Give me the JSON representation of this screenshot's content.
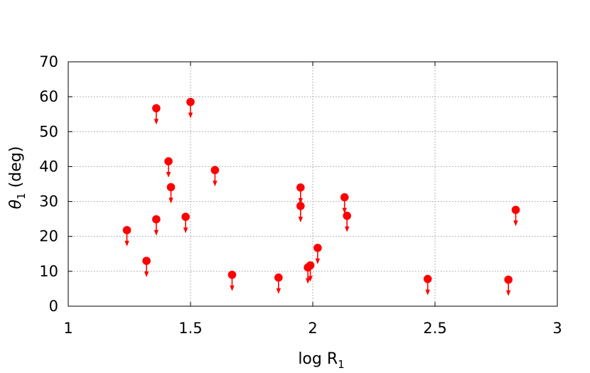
{
  "chart_data": {
    "type": "scatter",
    "title": "",
    "xlabel_main": "log R",
    "xlabel_sub": "1",
    "ylabel_main": "θ",
    "ylabel_sub": "1",
    "ylabel_rest": " (deg)",
    "xlim": [
      1,
      3
    ],
    "ylim": [
      0,
      70
    ],
    "xticks": [
      1,
      1.5,
      2,
      2.5,
      3
    ],
    "xtick_labels": [
      "1",
      "1.5",
      "2",
      "2.5",
      "3"
    ],
    "yticks": [
      0,
      10,
      20,
      30,
      40,
      50,
      60,
      70
    ],
    "ytick_labels": [
      "0",
      "10",
      "20",
      "30",
      "40",
      "50",
      "60",
      "70"
    ],
    "grid": true,
    "marker": "upper-limit",
    "marker_color": "#ff0000",
    "points": [
      {
        "x": 1.24,
        "y": 21.8
      },
      {
        "x": 1.32,
        "y": 13.0
      },
      {
        "x": 1.36,
        "y": 56.7
      },
      {
        "x": 1.36,
        "y": 24.9
      },
      {
        "x": 1.41,
        "y": 41.5
      },
      {
        "x": 1.42,
        "y": 34.1
      },
      {
        "x": 1.48,
        "y": 25.6
      },
      {
        "x": 1.5,
        "y": 58.5
      },
      {
        "x": 1.6,
        "y": 39.0
      },
      {
        "x": 1.67,
        "y": 9.0
      },
      {
        "x": 1.86,
        "y": 8.2
      },
      {
        "x": 1.95,
        "y": 34.0
      },
      {
        "x": 1.95,
        "y": 28.7
      },
      {
        "x": 1.98,
        "y": 11.1
      },
      {
        "x": 1.99,
        "y": 11.7
      },
      {
        "x": 2.02,
        "y": 16.7
      },
      {
        "x": 2.13,
        "y": 31.2
      },
      {
        "x": 2.14,
        "y": 25.9
      },
      {
        "x": 2.47,
        "y": 7.8
      },
      {
        "x": 2.8,
        "y": 7.6
      },
      {
        "x": 2.83,
        "y": 27.6
      }
    ]
  }
}
